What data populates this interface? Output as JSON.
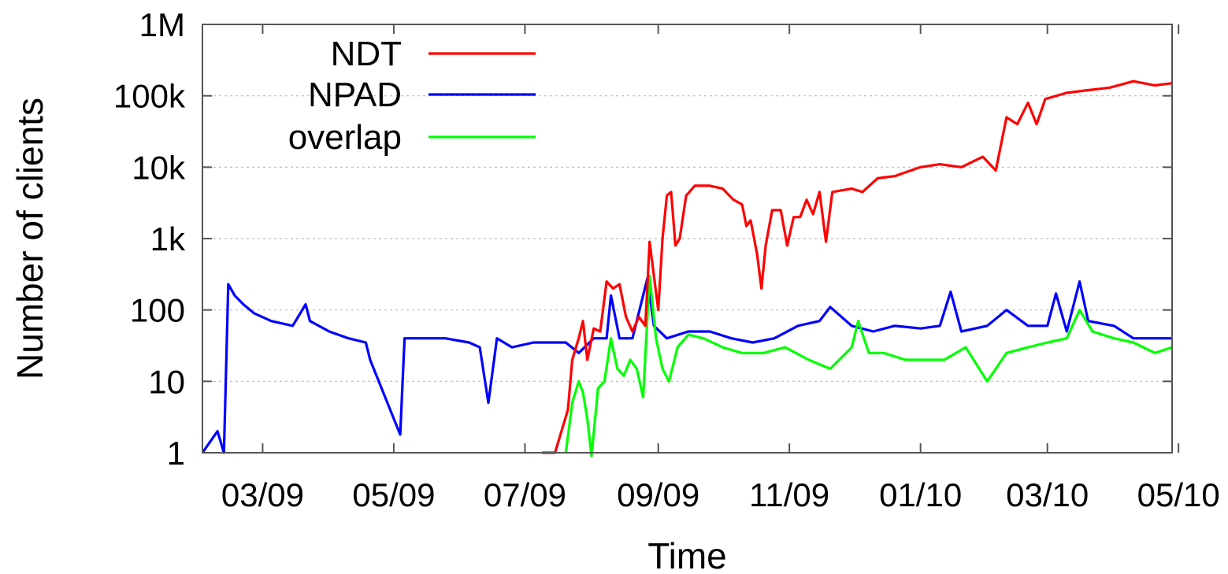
{
  "chart_data": {
    "type": "line",
    "title": "",
    "xlabel": "Time",
    "ylabel": "Number of clients",
    "yscale": "log",
    "ylim": [
      1,
      1000000
    ],
    "xlim": [
      "2009-02-01",
      "2010-04-28"
    ],
    "grid": "horizontal dashed",
    "legend_placement": "top-left",
    "x_ticks": [
      {
        "date": "2009-03-01",
        "label": "03/09"
      },
      {
        "date": "2009-05-01",
        "label": "05/09"
      },
      {
        "date": "2009-07-01",
        "label": "07/09"
      },
      {
        "date": "2009-09-01",
        "label": "09/09"
      },
      {
        "date": "2009-11-01",
        "label": "11/09"
      },
      {
        "date": "2010-01-01",
        "label": "01/10"
      },
      {
        "date": "2010-03-01",
        "label": "03/10"
      },
      {
        "date": "2010-05-01",
        "label": "05/10"
      }
    ],
    "y_ticks": [
      {
        "value": 1,
        "label": "1"
      },
      {
        "value": 10,
        "label": "10"
      },
      {
        "value": 100,
        "label": "100"
      },
      {
        "value": 1000,
        "label": "1k"
      },
      {
        "value": 10000,
        "label": "10k"
      },
      {
        "value": 100000,
        "label": "100k"
      },
      {
        "value": 1000000,
        "label": "1M"
      }
    ],
    "series": [
      {
        "name": "NDT",
        "color": "#ff0000",
        "points": [
          [
            "2009-07-09",
            1
          ],
          [
            "2009-07-15",
            1
          ],
          [
            "2009-07-18",
            2
          ],
          [
            "2009-07-21",
            4
          ],
          [
            "2009-07-23",
            20
          ],
          [
            "2009-07-26",
            40
          ],
          [
            "2009-07-28",
            70
          ],
          [
            "2009-07-30",
            20
          ],
          [
            "2009-08-02",
            55
          ],
          [
            "2009-08-05",
            50
          ],
          [
            "2009-08-08",
            250
          ],
          [
            "2009-08-11",
            200
          ],
          [
            "2009-08-14",
            230
          ],
          [
            "2009-08-17",
            80
          ],
          [
            "2009-08-20",
            50
          ],
          [
            "2009-08-23",
            80
          ],
          [
            "2009-08-26",
            60
          ],
          [
            "2009-08-28",
            900
          ],
          [
            "2009-08-30",
            300
          ],
          [
            "2009-09-01",
            100
          ],
          [
            "2009-09-03",
            1000
          ],
          [
            "2009-09-05",
            4000
          ],
          [
            "2009-09-07",
            4500
          ],
          [
            "2009-09-09",
            800
          ],
          [
            "2009-09-11",
            1000
          ],
          [
            "2009-09-14",
            4000
          ],
          [
            "2009-09-18",
            5500
          ],
          [
            "2009-09-25",
            5500
          ],
          [
            "2009-10-01",
            5000
          ],
          [
            "2009-10-06",
            3500
          ],
          [
            "2009-10-10",
            3000
          ],
          [
            "2009-10-12",
            1500
          ],
          [
            "2009-10-14",
            1800
          ],
          [
            "2009-10-17",
            600
          ],
          [
            "2009-10-19",
            200
          ],
          [
            "2009-10-21",
            800
          ],
          [
            "2009-10-24",
            2500
          ],
          [
            "2009-10-28",
            2500
          ],
          [
            "2009-10-31",
            800
          ],
          [
            "2009-11-03",
            2000
          ],
          [
            "2009-11-06",
            2000
          ],
          [
            "2009-11-09",
            3500
          ],
          [
            "2009-11-12",
            2200
          ],
          [
            "2009-11-15",
            4500
          ],
          [
            "2009-11-18",
            900
          ],
          [
            "2009-11-21",
            4500
          ],
          [
            "2009-11-30",
            5000
          ],
          [
            "2009-12-05",
            4500
          ],
          [
            "2009-12-12",
            7000
          ],
          [
            "2009-12-20",
            7500
          ],
          [
            "2010-01-01",
            10000
          ],
          [
            "2010-01-10",
            11000
          ],
          [
            "2010-01-20",
            10000
          ],
          [
            "2010-01-30",
            14000
          ],
          [
            "2010-02-05",
            9000
          ],
          [
            "2010-02-10",
            50000
          ],
          [
            "2010-02-15",
            40000
          ],
          [
            "2010-02-20",
            80000
          ],
          [
            "2010-02-24",
            40000
          ],
          [
            "2010-02-28",
            90000
          ],
          [
            "2010-03-10",
            110000
          ],
          [
            "2010-03-20",
            120000
          ],
          [
            "2010-03-30",
            130000
          ],
          [
            "2010-04-10",
            160000
          ],
          [
            "2010-04-20",
            140000
          ],
          [
            "2010-04-28",
            150000
          ]
        ]
      },
      {
        "name": "NPAD",
        "color": "#0000ff",
        "points": [
          [
            "2009-02-01",
            1
          ],
          [
            "2009-02-08",
            2
          ],
          [
            "2009-02-11",
            1
          ],
          [
            "2009-02-13",
            230
          ],
          [
            "2009-02-16",
            160
          ],
          [
            "2009-02-20",
            120
          ],
          [
            "2009-02-25",
            90
          ],
          [
            "2009-03-05",
            70
          ],
          [
            "2009-03-15",
            60
          ],
          [
            "2009-03-21",
            120
          ],
          [
            "2009-03-23",
            70
          ],
          [
            "2009-04-01",
            50
          ],
          [
            "2009-04-10",
            40
          ],
          [
            "2009-04-18",
            35
          ],
          [
            "2009-04-20",
            20
          ],
          [
            "2009-05-01",
            3
          ],
          [
            "2009-05-04",
            1.8
          ],
          [
            "2009-05-06",
            40
          ],
          [
            "2009-05-15",
            40
          ],
          [
            "2009-05-25",
            40
          ],
          [
            "2009-06-05",
            35
          ],
          [
            "2009-06-10",
            30
          ],
          [
            "2009-06-14",
            5
          ],
          [
            "2009-06-18",
            40
          ],
          [
            "2009-06-25",
            30
          ],
          [
            "2009-07-05",
            35
          ],
          [
            "2009-07-20",
            35
          ],
          [
            "2009-07-26",
            25
          ],
          [
            "2009-08-02",
            40
          ],
          [
            "2009-08-08",
            40
          ],
          [
            "2009-08-10",
            160
          ],
          [
            "2009-08-14",
            40
          ],
          [
            "2009-08-20",
            40
          ],
          [
            "2009-08-27",
            280
          ],
          [
            "2009-08-30",
            60
          ],
          [
            "2009-09-05",
            40
          ],
          [
            "2009-09-15",
            50
          ],
          [
            "2009-09-25",
            50
          ],
          [
            "2009-10-05",
            40
          ],
          [
            "2009-10-15",
            35
          ],
          [
            "2009-10-25",
            40
          ],
          [
            "2009-11-05",
            60
          ],
          [
            "2009-11-15",
            70
          ],
          [
            "2009-11-20",
            110
          ],
          [
            "2009-11-30",
            60
          ],
          [
            "2009-12-10",
            50
          ],
          [
            "2009-12-20",
            60
          ],
          [
            "2010-01-01",
            55
          ],
          [
            "2010-01-10",
            60
          ],
          [
            "2010-01-15",
            180
          ],
          [
            "2010-01-20",
            50
          ],
          [
            "2010-02-01",
            60
          ],
          [
            "2010-02-10",
            100
          ],
          [
            "2010-02-20",
            60
          ],
          [
            "2010-02-25",
            60
          ],
          [
            "2010-03-01",
            60
          ],
          [
            "2010-03-05",
            170
          ],
          [
            "2010-03-10",
            50
          ],
          [
            "2010-03-16",
            250
          ],
          [
            "2010-03-20",
            70
          ],
          [
            "2010-04-01",
            60
          ],
          [
            "2010-04-10",
            40
          ],
          [
            "2010-04-20",
            40
          ],
          [
            "2010-04-28",
            40
          ]
        ]
      },
      {
        "name": "overlap",
        "color": "#00ff00",
        "points": [
          [
            "2009-07-20",
            1
          ],
          [
            "2009-07-23",
            5
          ],
          [
            "2009-07-26",
            10
          ],
          [
            "2009-07-28",
            7
          ],
          [
            "2009-07-30",
            3
          ],
          [
            "2009-08-01",
            0.9
          ],
          [
            "2009-08-04",
            8
          ],
          [
            "2009-08-07",
            10
          ],
          [
            "2009-08-10",
            40
          ],
          [
            "2009-08-13",
            15
          ],
          [
            "2009-08-16",
            12
          ],
          [
            "2009-08-19",
            20
          ],
          [
            "2009-08-22",
            15
          ],
          [
            "2009-08-25",
            6
          ],
          [
            "2009-08-28",
            300
          ],
          [
            "2009-08-31",
            40
          ],
          [
            "2009-09-03",
            15
          ],
          [
            "2009-09-06",
            10
          ],
          [
            "2009-09-10",
            30
          ],
          [
            "2009-09-15",
            45
          ],
          [
            "2009-09-22",
            40
          ],
          [
            "2009-10-01",
            30
          ],
          [
            "2009-10-10",
            25
          ],
          [
            "2009-10-20",
            25
          ],
          [
            "2009-10-30",
            30
          ],
          [
            "2009-11-10",
            20
          ],
          [
            "2009-11-20",
            15
          ],
          [
            "2009-11-30",
            30
          ],
          [
            "2009-12-03",
            70
          ],
          [
            "2009-12-08",
            25
          ],
          [
            "2009-12-15",
            25
          ],
          [
            "2009-12-25",
            20
          ],
          [
            "2010-01-05",
            20
          ],
          [
            "2010-01-12",
            20
          ],
          [
            "2010-01-22",
            30
          ],
          [
            "2010-02-01",
            10
          ],
          [
            "2010-02-10",
            25
          ],
          [
            "2010-02-20",
            30
          ],
          [
            "2010-03-01",
            35
          ],
          [
            "2010-03-10",
            40
          ],
          [
            "2010-03-16",
            100
          ],
          [
            "2010-03-22",
            50
          ],
          [
            "2010-04-01",
            40
          ],
          [
            "2010-04-10",
            35
          ],
          [
            "2010-04-20",
            25
          ],
          [
            "2010-04-28",
            30
          ]
        ]
      }
    ]
  }
}
